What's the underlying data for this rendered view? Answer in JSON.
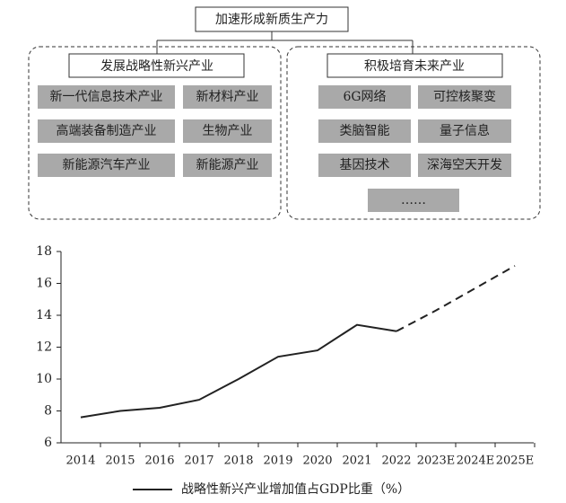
{
  "diagram": {
    "root": "加速形成新质生产力",
    "groups": [
      {
        "title": "发展战略性新兴产业",
        "items": [
          "新一代信息技术产业",
          "新材料产业",
          "高端装备制造产业",
          "生物产业",
          "新能源汽车产业",
          "新能源产业"
        ]
      },
      {
        "title": "积极培育未来产业",
        "items": [
          "6G网络",
          "可控核聚变",
          "类脑智能",
          "量子信息",
          "基因技术",
          "深海空天开发",
          "……"
        ]
      }
    ]
  },
  "chart_data": {
    "type": "line",
    "categories": [
      "2014",
      "2015",
      "2016",
      "2017",
      "2018",
      "2019",
      "2020",
      "2021",
      "2022",
      "2023E",
      "2024E",
      "2025E"
    ],
    "series": [
      {
        "name": "战略性新兴产业增加值占GDP比重（%）",
        "color": "#222222",
        "values": [
          7.6,
          8.0,
          8.2,
          8.7,
          10.0,
          11.4,
          11.8,
          13.4,
          13.0,
          14.3,
          15.7,
          17.1
        ],
        "dashed": [
          false,
          false,
          false,
          false,
          false,
          false,
          false,
          false,
          false,
          true,
          true,
          true
        ]
      }
    ],
    "ylim": [
      6,
      18
    ],
    "yticks": [
      6,
      8,
      10,
      12,
      14,
      16,
      18
    ],
    "grid": false,
    "legend": "bottom"
  }
}
